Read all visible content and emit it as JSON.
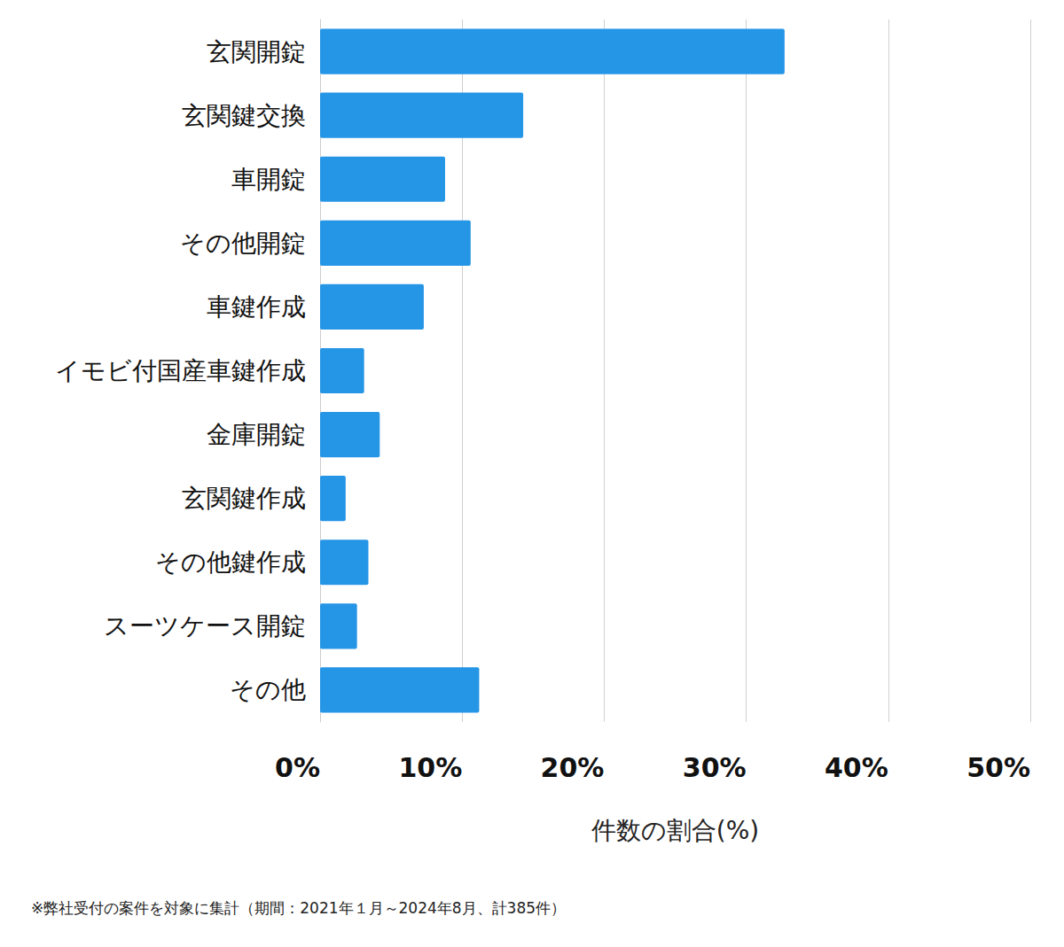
{
  "chart_data": {
    "type": "bar",
    "orientation": "horizontal",
    "categories": [
      "玄関開錠",
      "玄関鍵交換",
      "車開錠",
      "その他開錠",
      "車鍵作成",
      "イモビ付国産車鍵作成",
      "金庫開錠",
      "玄関鍵作成",
      "その他鍵作成",
      "スーツケース開錠",
      "その他"
    ],
    "values": [
      32.7,
      14.3,
      8.8,
      10.6,
      7.3,
      3.1,
      4.2,
      1.8,
      3.4,
      2.6,
      11.2
    ],
    "color": "#2595e6",
    "xlabel": "件数の割合(%)",
    "xlim": [
      0,
      50
    ],
    "xticks": [
      {
        "value": 0,
        "label": "0%"
      },
      {
        "value": 10,
        "label": "10%"
      },
      {
        "value": 20,
        "label": "20%"
      },
      {
        "value": 30,
        "label": "30%"
      },
      {
        "value": 40,
        "label": "40%"
      },
      {
        "value": 50,
        "label": "50%"
      }
    ],
    "grid": true,
    "annotations": [
      "※弊社受付の案件を対象に集計（期間：2021年１月～2024年8月、計385件）"
    ]
  }
}
